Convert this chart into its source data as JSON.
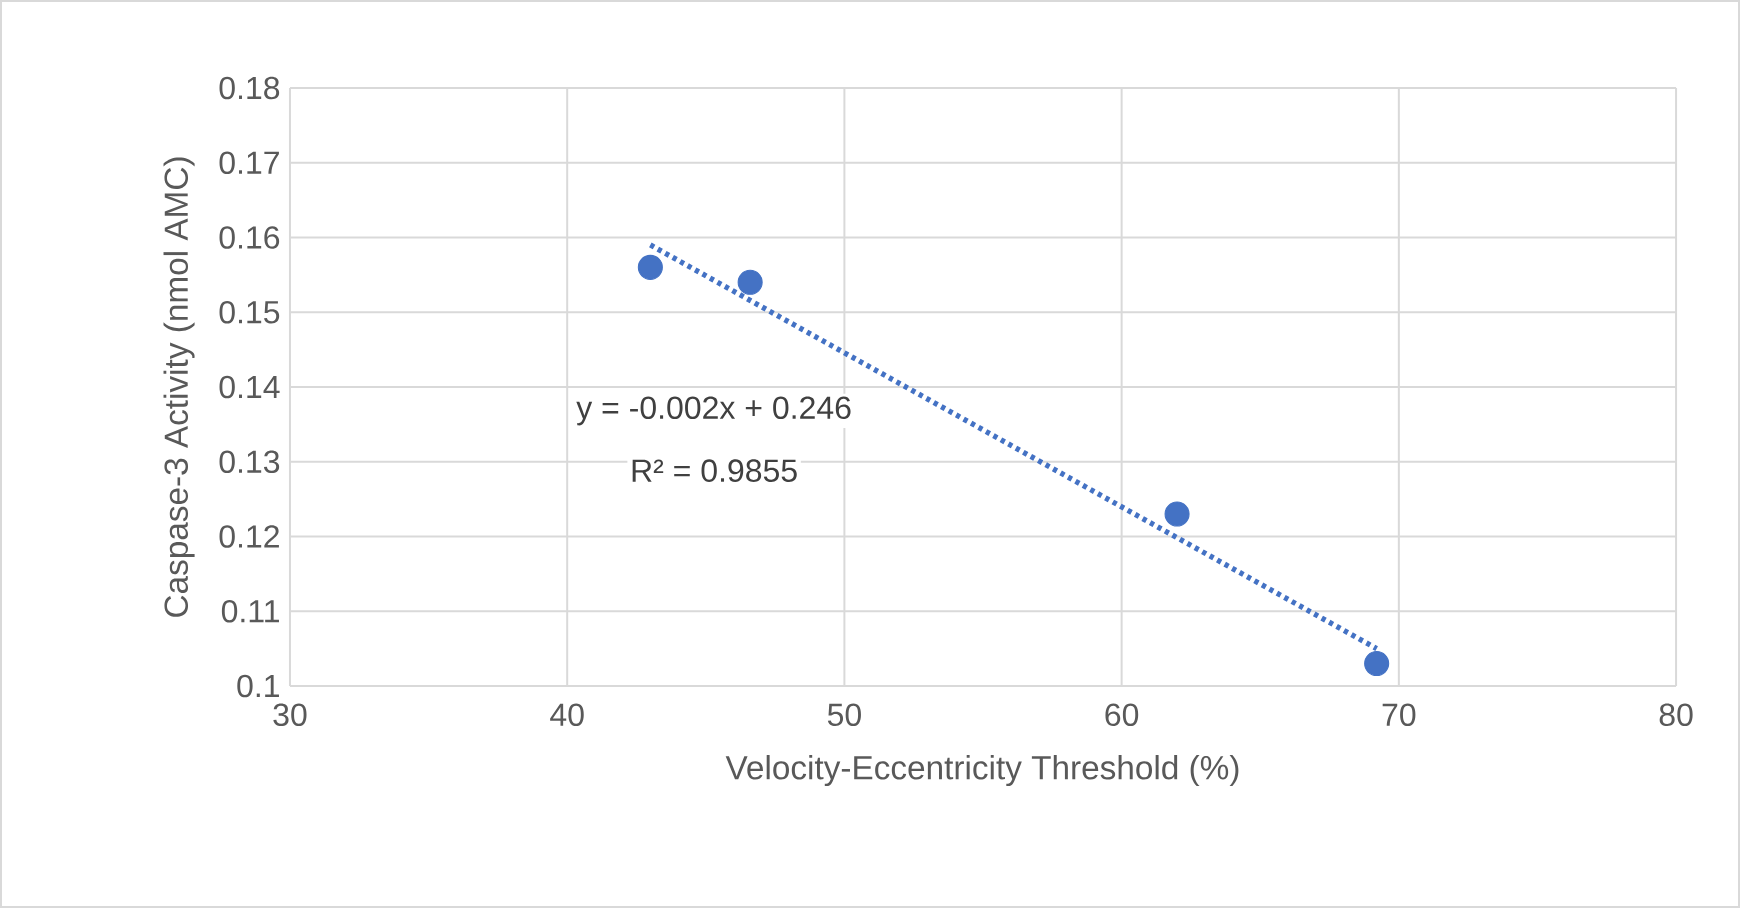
{
  "chart_data": {
    "type": "scatter",
    "xlabel": "Velocity-Eccentricity Threshold (%)",
    "ylabel": "Caspase-3 Activity (nmol AMC)",
    "xlim": [
      30,
      80
    ],
    "xticks": [
      30,
      40,
      50,
      60,
      70,
      80
    ],
    "ylim": [
      0.1,
      0.18
    ],
    "yticks": [
      0.1,
      0.11,
      0.12,
      0.13,
      0.14,
      0.15,
      0.16,
      0.17,
      0.18
    ],
    "grid": true,
    "series": [
      {
        "color": "#4472c4",
        "marker": "circle",
        "x": [
          43.0,
          46.6,
          62.0,
          69.2
        ],
        "values": [
          0.156,
          0.154,
          0.123,
          0.103
        ]
      },
      {
        "type": "line",
        "color": "#4472c4",
        "line_style": "dotted",
        "marker": "none",
        "x": [
          43.0,
          69.2
        ],
        "values": [
          0.159,
          0.105
        ]
      }
    ],
    "annotations": [
      "y = -0.002x + 0.246",
      "R² = 0.9855"
    ]
  }
}
